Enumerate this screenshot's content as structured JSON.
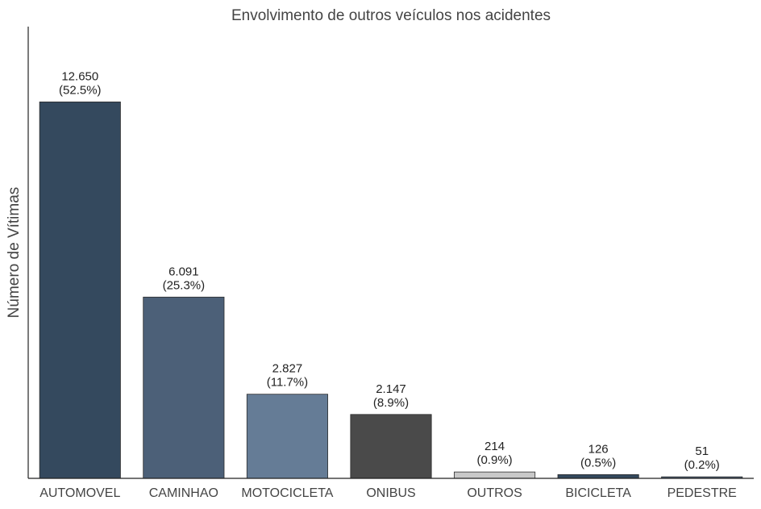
{
  "chart_data": {
    "type": "bar",
    "title": "Envolvimento de outros veículos nos acidentes",
    "xlabel": "",
    "ylabel": "Número de Vítimas",
    "categories": [
      "AUTOMOVEL",
      "CAMINHAO",
      "MOTOCICLETA",
      "ONIBUS",
      "OUTROS",
      "BICICLETA",
      "PEDESTRE"
    ],
    "values": [
      12650,
      6091,
      2827,
      2147,
      214,
      126,
      51
    ],
    "value_labels": [
      "12.650",
      "6.091",
      "2.827",
      "2.147",
      "214",
      "126",
      "51"
    ],
    "percent_labels": [
      "(52.5%)",
      "(25.3%)",
      "(11.7%)",
      "(8.9%)",
      "(0.9%)",
      "(0.5%)",
      "(0.2%)"
    ],
    "colors": [
      "#34495e",
      "#4c6078",
      "#657c96",
      "#4a4a4a",
      "#c8c8c8",
      "#34495e",
      "#4c6078"
    ],
    "ylim": [
      0,
      15180
    ],
    "grid": false,
    "yticks_visible": false
  }
}
